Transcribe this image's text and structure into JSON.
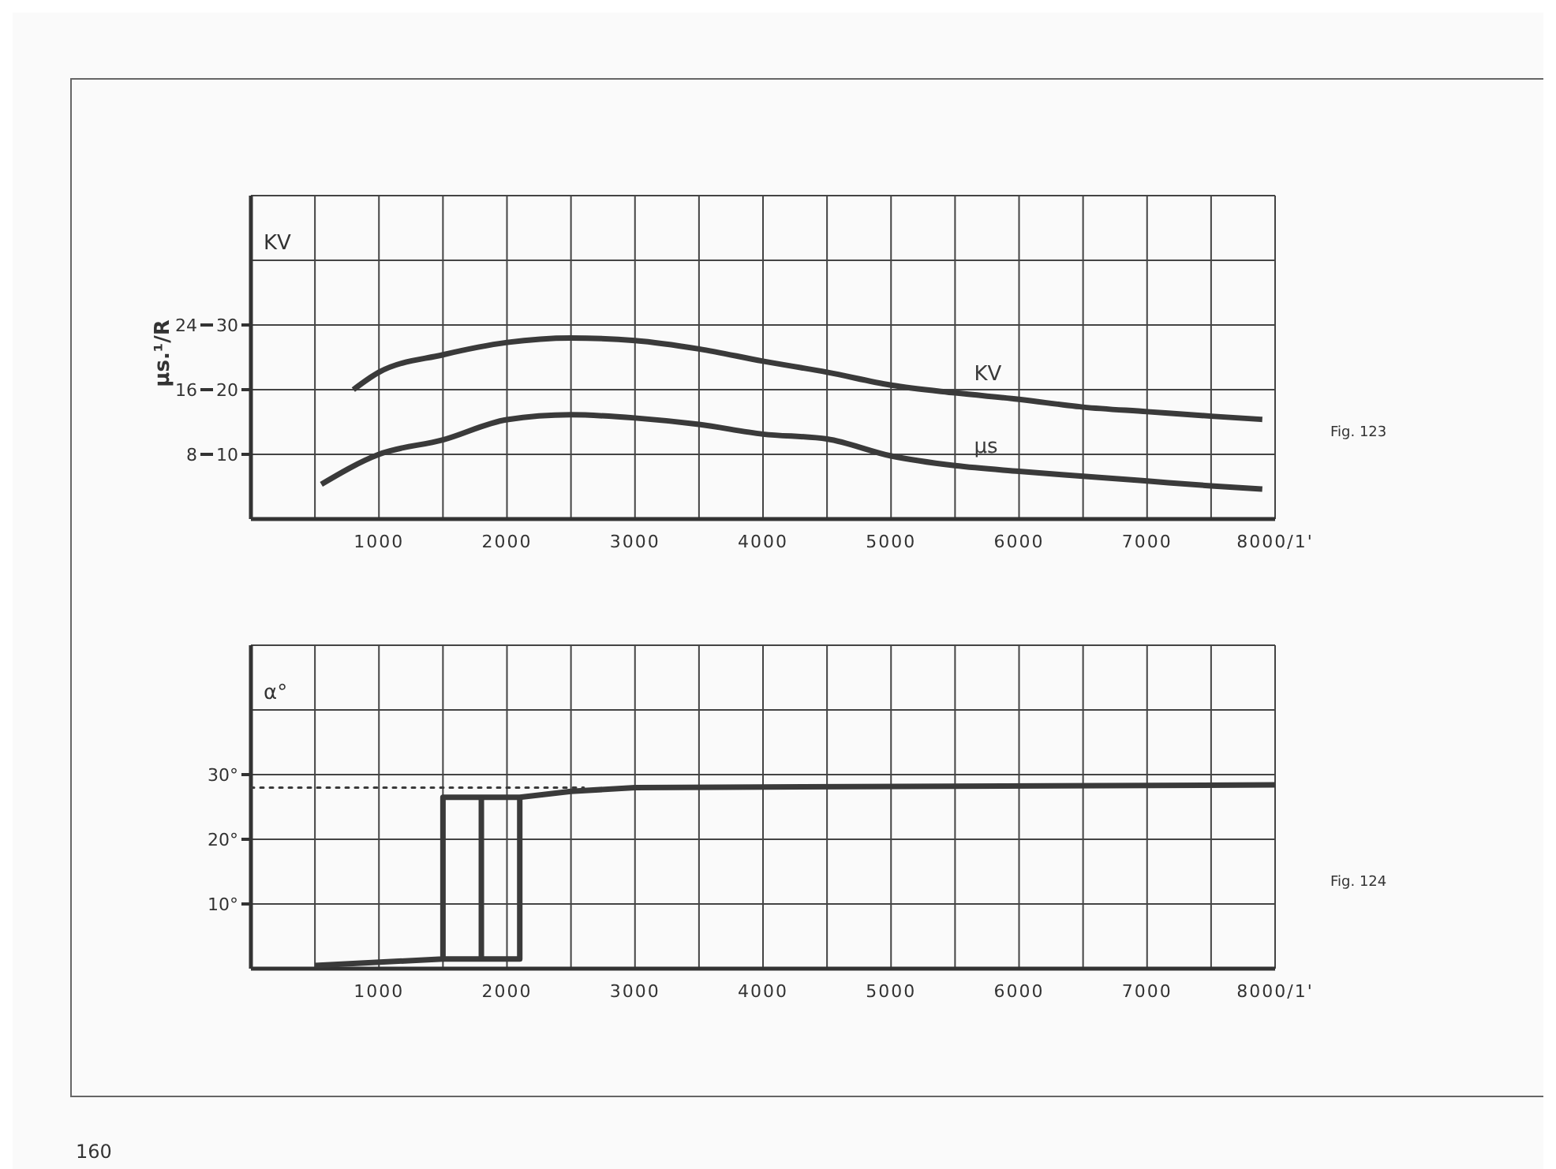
{
  "chart_data": [
    {
      "type": "line",
      "ylabel": "KV",
      "y2label": "μs.¹/R",
      "annotations": [
        "Fig. 123"
      ],
      "xlim": [
        0,
        8000
      ],
      "xticks": [
        {
          "value": 500,
          "label": null
        },
        {
          "value": 1000,
          "label": "1000"
        },
        {
          "value": 1500,
          "label": null
        },
        {
          "value": 2000,
          "label": "2000"
        },
        {
          "value": 2500,
          "label": null
        },
        {
          "value": 3000,
          "label": "3000"
        },
        {
          "value": 3500,
          "label": null
        },
        {
          "value": 4000,
          "label": "4000"
        },
        {
          "value": 4500,
          "label": null
        },
        {
          "value": 5000,
          "label": "5000"
        },
        {
          "value": 5500,
          "label": null
        },
        {
          "value": 6000,
          "label": "6000"
        },
        {
          "value": 6500,
          "label": null
        },
        {
          "value": 7000,
          "label": "7000"
        },
        {
          "value": 7500,
          "label": null
        },
        {
          "value": 8000,
          "label": "8000/1'"
        }
      ],
      "ylim": [
        0,
        50
      ],
      "yticks": [
        10,
        20,
        30,
        {
          "value": 40,
          "label": null
        },
        {
          "value": 50,
          "label": null
        }
      ],
      "y2lim": [
        0,
        40
      ],
      "y2ticks": [
        8,
        16,
        24
      ],
      "grid": true,
      "line_style": "solid",
      "marker": "none",
      "series": [
        {
          "name": "KV",
          "color": "#3a3a3a",
          "x": [
            800,
            1000,
            1500,
            2000,
            2500,
            3000,
            3500,
            4000,
            4500,
            5000,
            5500,
            6000,
            6500,
            7000,
            7500,
            7900
          ],
          "values": [
            20,
            22.7,
            25.4,
            27.3,
            28,
            27.6,
            26.3,
            24.4,
            22.7,
            20.7,
            19.5,
            18.5,
            17.3,
            16.6,
            15.9,
            15.4
          ]
        },
        {
          "name": "μs",
          "color": "#3a3a3a",
          "axis": "y2",
          "x": [
            550,
            1000,
            1500,
            2000,
            2500,
            3000,
            3500,
            4000,
            4500,
            5000,
            5500,
            6000,
            6500,
            7000,
            7500,
            7900
          ],
          "values": [
            4.3,
            8,
            9.8,
            12.3,
            12.9,
            12.5,
            11.7,
            10.5,
            9.9,
            7.8,
            6.6,
            5.9,
            5.3,
            4.7,
            4.1,
            3.7
          ]
        }
      ]
    },
    {
      "type": "line",
      "ylabel": "α°",
      "annotations": [
        "Fig. 124",
        "160"
      ],
      "xlim": [
        0,
        8000
      ],
      "xticks": [
        {
          "value": 500,
          "label": null
        },
        {
          "value": 1000,
          "label": "1000"
        },
        {
          "value": 1500,
          "label": null
        },
        {
          "value": 2000,
          "label": "2000"
        },
        {
          "value": 2500,
          "label": null
        },
        {
          "value": 3000,
          "label": "3000"
        },
        {
          "value": 3500,
          "label": null
        },
        {
          "value": 4000,
          "label": "4000"
        },
        {
          "value": 4500,
          "label": null
        },
        {
          "value": 5000,
          "label": "5000"
        },
        {
          "value": 5500,
          "label": null
        },
        {
          "value": 6000,
          "label": "6000"
        },
        {
          "value": 6500,
          "label": null
        },
        {
          "value": 7000,
          "label": "7000"
        },
        {
          "value": 7500,
          "label": null
        },
        {
          "value": 8000,
          "label": "8000/1'"
        }
      ],
      "ylim": [
        0,
        50
      ],
      "yticks": [
        {
          "value": 10,
          "label": "10°"
        },
        {
          "value": 20,
          "label": "20°"
        },
        {
          "value": 30,
          "label": "30°"
        },
        {
          "value": 40,
          "label": null
        },
        {
          "value": 50,
          "label": null
        }
      ],
      "grid": true,
      "marker": "none",
      "series": [
        {
          "color": "#3a3a3a",
          "line_style": "solid",
          "x": [
            500,
            1500,
            1500,
            2100,
            2500,
            3000,
            8000
          ],
          "values": [
            0.5,
            1.5,
            26.5,
            26.5,
            27.4,
            28,
            28.4
          ]
        },
        {
          "color": "#3a3a3a",
          "line_style": "solid",
          "x": [
            1500,
            2100,
            2100
          ],
          "values": [
            1.5,
            1.5,
            26.5
          ]
        },
        {
          "color": "#3a3a3a",
          "line_style": "solid",
          "x": [
            1800,
            1800
          ],
          "values": [
            1.5,
            26.5
          ]
        },
        {
          "color": "#3a3a3a",
          "line_style": "dotted",
          "x": [
            0,
            2600
          ],
          "values": [
            28,
            28
          ]
        }
      ]
    }
  ]
}
